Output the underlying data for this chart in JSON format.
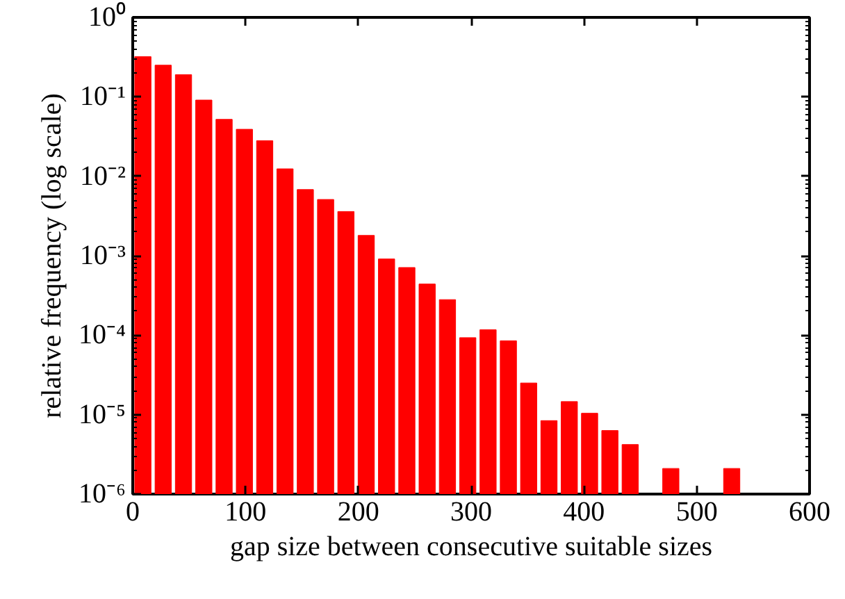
{
  "chart_data": {
    "type": "histogram",
    "xlabel": "gap size between consecutive suitable sizes",
    "ylabel": "relative frequency (log scale)",
    "color": "#ff0000",
    "bins": [
      0,
      18,
      36,
      54,
      72,
      90,
      108,
      126,
      144,
      162,
      180,
      198,
      216,
      234,
      252,
      270,
      288,
      306,
      324,
      342,
      360,
      378,
      396,
      414,
      432,
      450,
      468,
      486,
      504,
      522,
      540
    ],
    "values": [
      0.32,
      0.25,
      0.19,
      0.091,
      0.052,
      0.039,
      0.028,
      0.0124,
      0.0068,
      0.0051,
      0.0036,
      0.0018,
      0.00091,
      0.00071,
      0.00044,
      0.00028,
      9.3e-05,
      0.000117,
      8.5e-05,
      2.5e-05,
      8.4e-06,
      1.46e-05,
      1.04e-05,
      6.3e-06,
      4.2e-06,
      null,
      2.1e-06,
      null,
      null,
      2.1e-06
    ],
    "log": "y",
    "xlim": [
      0,
      600
    ],
    "ylim": [
      1e-06,
      1
    ],
    "xticks": [
      0,
      100,
      200,
      300,
      400,
      500,
      600
    ],
    "yticks": [
      {
        "value": 1e-06,
        "label": "10⁻⁶"
      },
      {
        "value": 1e-05,
        "label": "10⁻⁵"
      },
      {
        "value": 0.0001,
        "label": "10⁻⁴"
      },
      {
        "value": 0.001,
        "label": "10⁻³"
      },
      {
        "value": 0.01,
        "label": "10⁻²"
      },
      {
        "value": 0.1,
        "label": "10⁻¹"
      },
      {
        "value": 1,
        "label": "10⁰"
      }
    ],
    "grid": false
  }
}
